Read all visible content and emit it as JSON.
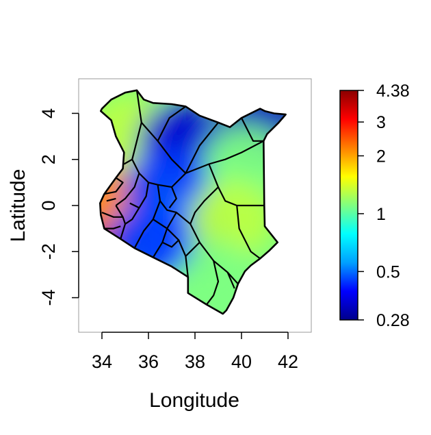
{
  "axes": {
    "xlabel": "Longitude",
    "ylabel": "Latitude",
    "xlim": [
      33.0,
      43.0
    ],
    "ylim": [
      -5.5,
      5.5
    ],
    "xticks": [
      "34",
      "36",
      "38",
      "40",
      "42"
    ],
    "yticks": [
      "4",
      "2",
      "0",
      "-2",
      "-4"
    ]
  },
  "colorbar": {
    "labels": [
      "4.38",
      "3",
      "2",
      "1",
      "0.5",
      "0.28"
    ],
    "min": 0.28,
    "max": 4.38,
    "scale": "log",
    "colors": [
      "#00008b",
      "#0000ff",
      "#00a0ff",
      "#00ffff",
      "#80ff80",
      "#ffff00",
      "#ff8000",
      "#ff0000",
      "#8b0000"
    ]
  },
  "chart_data": {
    "type": "heatmap",
    "title": "",
    "xlabel": "Longitude",
    "ylabel": "Latitude",
    "xlim": [
      33.0,
      43.0
    ],
    "ylim": [
      -5.5,
      5.5
    ],
    "value_range": [
      0.28,
      4.38
    ],
    "color_scale": "log",
    "grid": false,
    "legend": "colorbar-right",
    "region_values": [
      {
        "lon": 34.2,
        "lat": -0.5,
        "value": 3.4
      },
      {
        "lon": 34.5,
        "lat": 0.6,
        "value": 2.1
      },
      {
        "lon": 35.2,
        "lat": 3.2,
        "value": 1.3
      },
      {
        "lon": 37.4,
        "lat": 2.8,
        "value": 0.35
      },
      {
        "lon": 40.8,
        "lat": 3.4,
        "value": 0.33
      },
      {
        "lon": 40.2,
        "lat": 1.8,
        "value": 1.1
      },
      {
        "lon": 36.8,
        "lat": 0.8,
        "value": 0.45
      },
      {
        "lon": 37.5,
        "lat": -1.2,
        "value": 0.5
      },
      {
        "lon": 39.6,
        "lat": -0.6,
        "value": 1.3
      },
      {
        "lon": 38.8,
        "lat": -3.2,
        "value": 1.1
      },
      {
        "lon": 36.0,
        "lat": -1.6,
        "value": 0.45
      }
    ]
  }
}
